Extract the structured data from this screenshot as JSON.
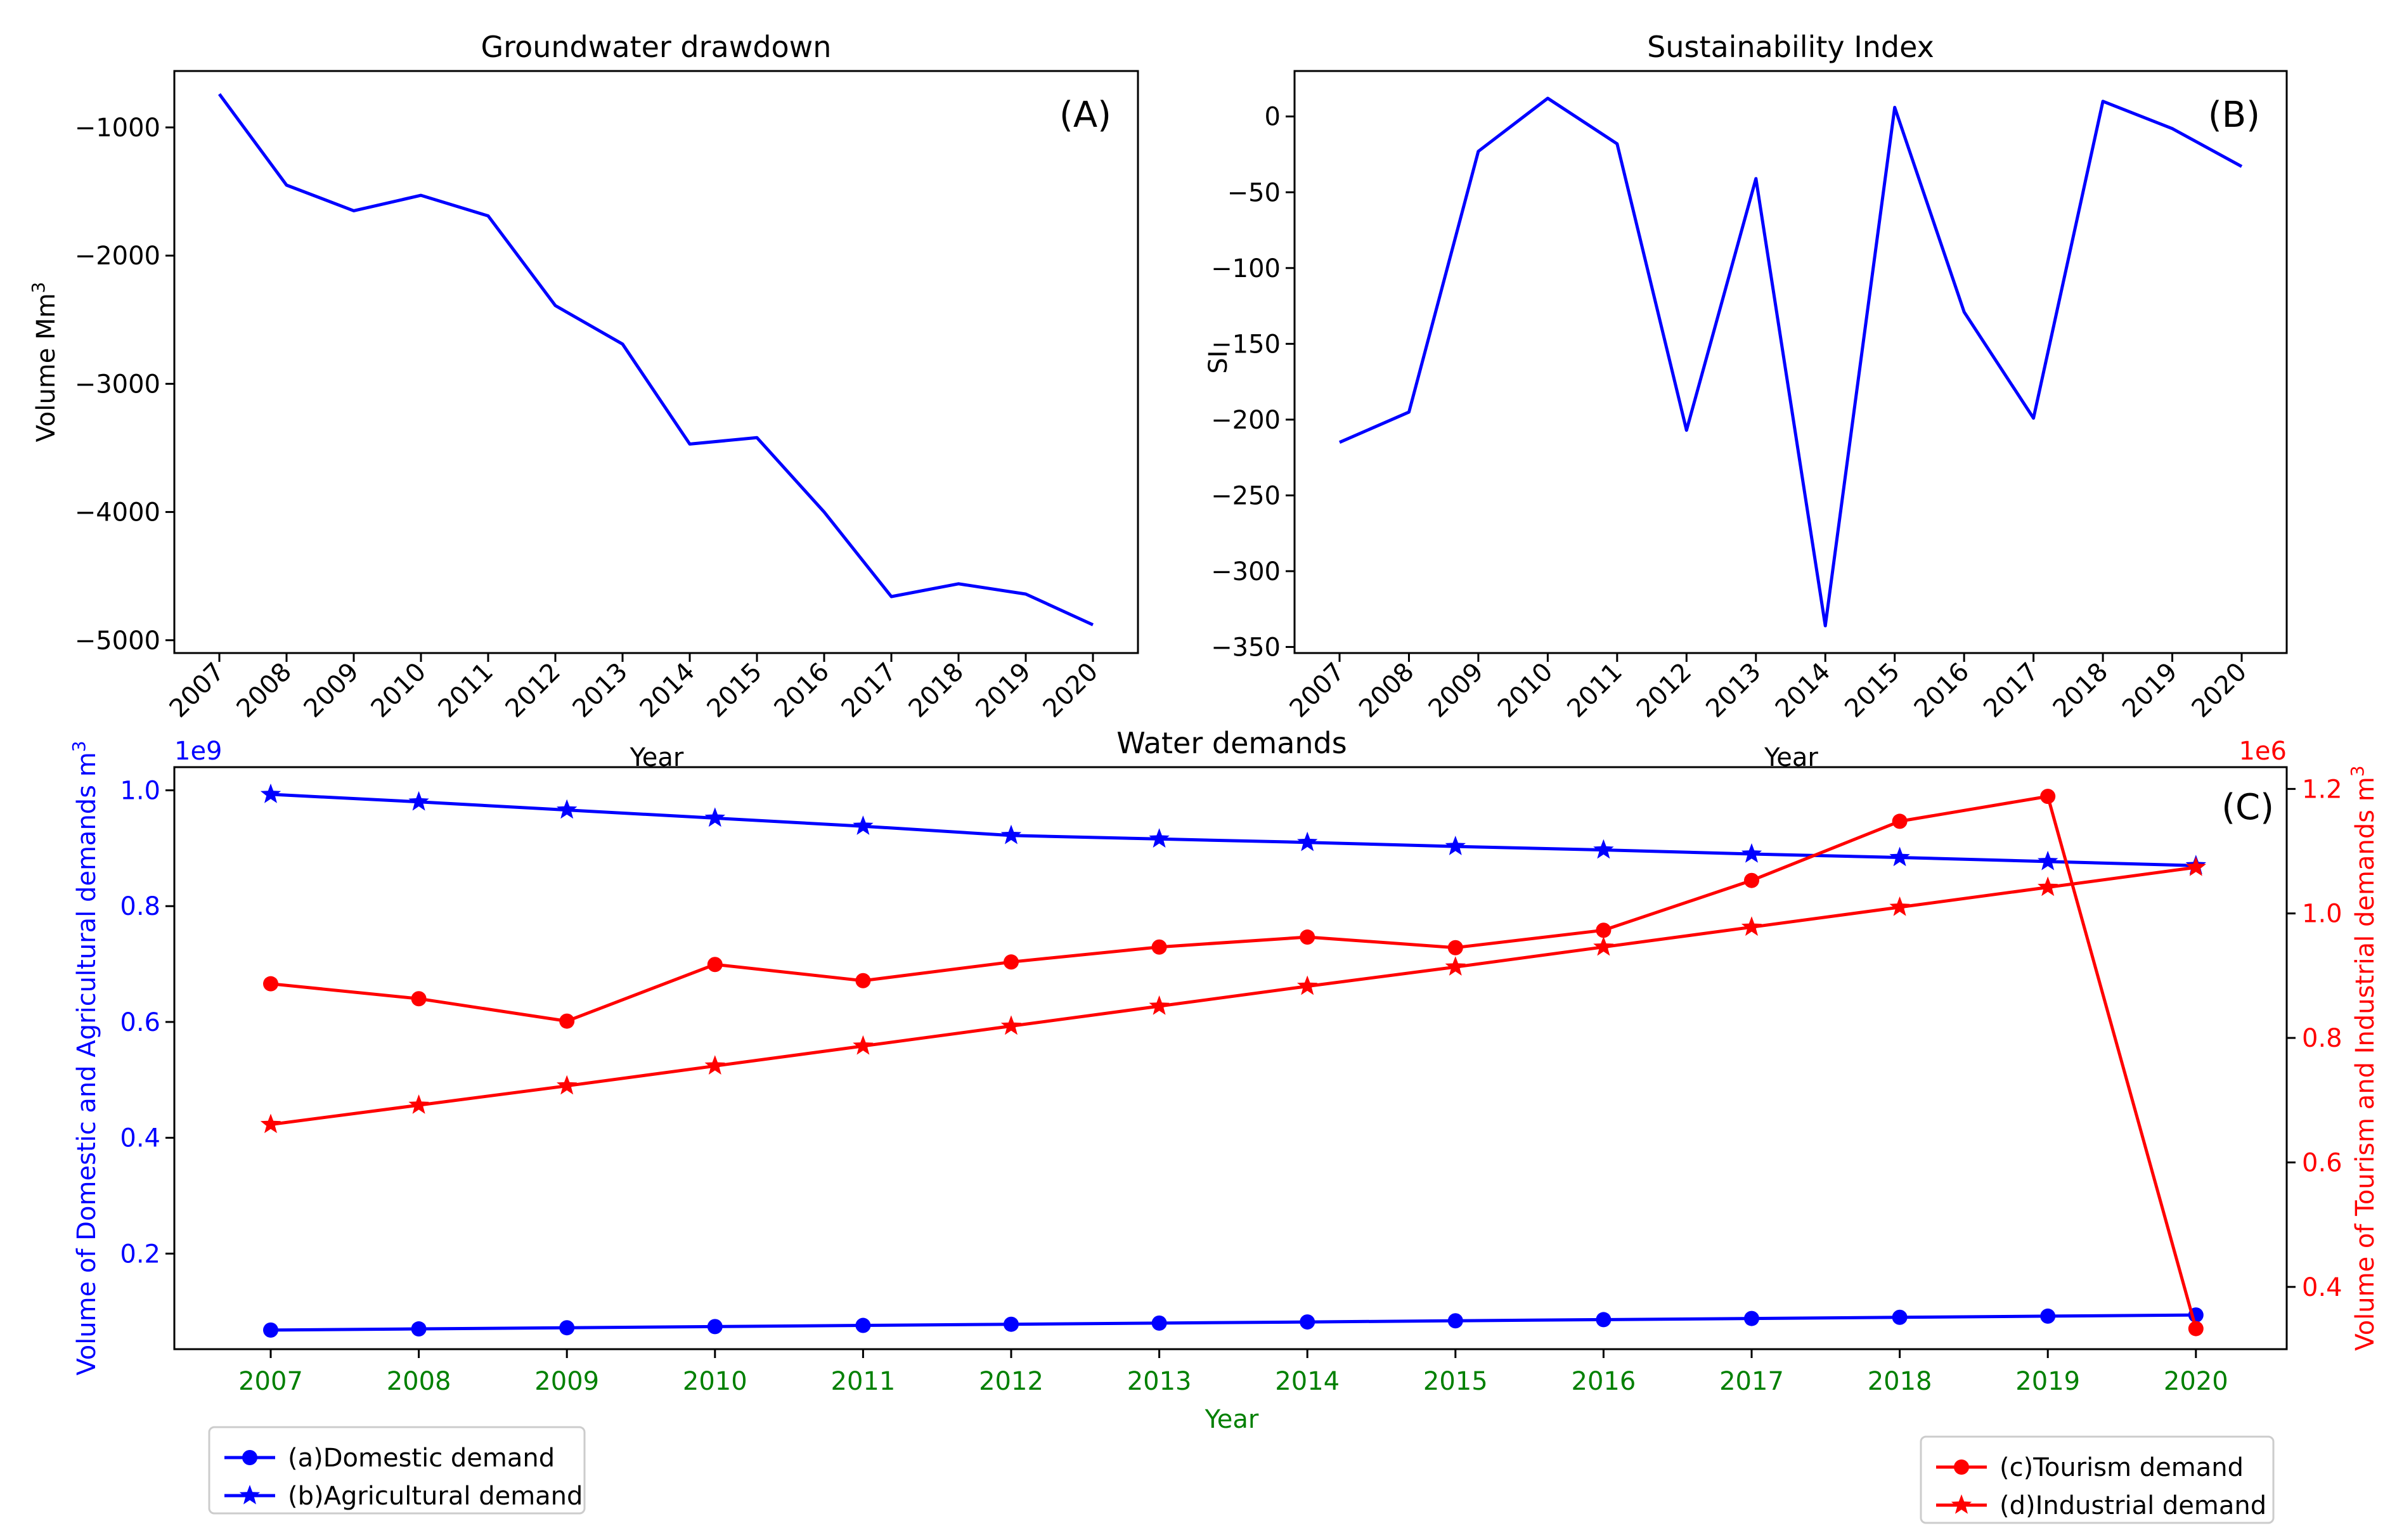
{
  "chart_data": [
    {
      "id": "A",
      "type": "line",
      "title": "Groundwater drawdown",
      "panel_label": "(A)",
      "xlabel": "Year",
      "ylabel": "Volume Mm",
      "ylabel_sup": "3",
      "categories": [
        "2007",
        "2008",
        "2009",
        "2010",
        "2011",
        "2012",
        "2013",
        "2014",
        "2015",
        "2016",
        "2017",
        "2018",
        "2019",
        "2020"
      ],
      "series": [
        {
          "name": "Groundwater drawdown",
          "color": "#0000ff",
          "values": [
            -740,
            -1450,
            -1650,
            -1530,
            -1690,
            -2390,
            -2690,
            -3470,
            -3420,
            -4000,
            -4660,
            -4560,
            -4640,
            -4880
          ]
        }
      ],
      "ylim": [
        -5100,
        -560
      ],
      "yticks": [
        -1000,
        -2000,
        -3000,
        -4000,
        -5000
      ],
      "ytick_labels": [
        "−1000",
        "−2000",
        "−3000",
        "−4000",
        "−5000"
      ]
    },
    {
      "id": "B",
      "type": "line",
      "title": "Sustainability Index",
      "panel_label": "(B)",
      "xlabel": "Year",
      "ylabel": "SI",
      "categories": [
        "2007",
        "2008",
        "2009",
        "2010",
        "2011",
        "2012",
        "2013",
        "2014",
        "2015",
        "2016",
        "2017",
        "2018",
        "2019",
        "2020"
      ],
      "series": [
        {
          "name": "SI",
          "color": "#0000ff",
          "values": [
            -215,
            -195,
            -23,
            12,
            -18,
            -207,
            -41,
            -336,
            6,
            -129,
            -199,
            10,
            -8,
            -33
          ]
        }
      ],
      "ylim": [
        -354,
        30
      ],
      "yticks": [
        0,
        -50,
        -100,
        -150,
        -200,
        -250,
        -300,
        -350
      ],
      "ytick_labels": [
        "0",
        "−50",
        "−100",
        "−150",
        "−200",
        "−250",
        "−300",
        "−350"
      ]
    },
    {
      "id": "C",
      "type": "line",
      "title": "Water demands",
      "panel_label": "(C)",
      "xlabel": "Year",
      "ylabel_left": "Volume of Domestic and Agricultural demands m",
      "ylabel_left_sup": "3",
      "ylabel_right": "Volume of Tourism and Industrial demands m",
      "ylabel_right_sup": "3",
      "left_offset_text": "1e9",
      "right_offset_text": "1e6",
      "left_color": "#0000ff",
      "right_color": "#ff0000",
      "xtick_color": "#008000",
      "categories": [
        "2007",
        "2008",
        "2009",
        "2010",
        "2011",
        "2012",
        "2013",
        "2014",
        "2015",
        "2016",
        "2017",
        "2018",
        "2019",
        "2020"
      ],
      "ylim_left": [
        0.035,
        1.04
      ],
      "yticks_left": [
        0.2,
        0.4,
        0.6,
        0.8,
        1.0
      ],
      "ytick_labels_left": [
        "0.2",
        "0.4",
        "0.6",
        "0.8",
        "1.0"
      ],
      "ylim_right": [
        0.3,
        1.235
      ],
      "yticks_right": [
        0.4,
        0.6,
        0.8,
        1.0,
        1.2
      ],
      "ytick_labels_right": [
        "0.4",
        "0.6",
        "0.8",
        "1.0",
        "1.2"
      ],
      "series": [
        {
          "name": "(a)Domestic demand",
          "axis": "left",
          "color": "#0000ff",
          "marker": "circle",
          "values": [
            0.068,
            0.07,
            0.072,
            0.074,
            0.076,
            0.078,
            0.08,
            0.082,
            0.084,
            0.086,
            0.088,
            0.09,
            0.092,
            0.094
          ]
        },
        {
          "name": "(b)Agricultural demand",
          "axis": "left",
          "color": "#0000ff",
          "marker": "star",
          "values": [
            0.993,
            0.98,
            0.966,
            0.952,
            0.938,
            0.922,
            0.916,
            0.91,
            0.903,
            0.897,
            0.89,
            0.884,
            0.877,
            0.87
          ]
        },
        {
          "name": "(c)Tourism demand",
          "axis": "right",
          "color": "#ff0000",
          "marker": "circle",
          "values": [
            0.887,
            0.863,
            0.827,
            0.918,
            0.892,
            0.922,
            0.946,
            0.962,
            0.945,
            0.973,
            1.053,
            1.148,
            1.188,
            0.333
          ]
        },
        {
          "name": "(d)Industrial demand",
          "axis": "right",
          "color": "#ff0000",
          "marker": "star",
          "values": [
            0.661,
            0.692,
            0.723,
            0.755,
            0.787,
            0.819,
            0.851,
            0.883,
            0.914,
            0.946,
            0.978,
            1.01,
            1.042,
            1.074
          ]
        }
      ]
    }
  ]
}
